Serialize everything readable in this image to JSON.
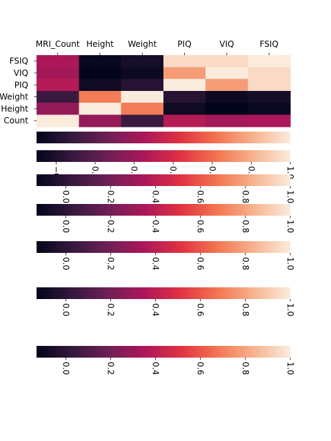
{
  "chart_data": {
    "type": "heatmap",
    "title": "",
    "x_labels": [
      "MRI_Count",
      "Height",
      "Weight",
      "PIQ",
      "VIQ",
      "FSIQ"
    ],
    "y_labels": [
      "FSIQ",
      "VIQ",
      "PIQ",
      "Weight",
      "Height",
      "MRI_Count"
    ],
    "y_labels_shown": [
      "FSIQ",
      "VIQ",
      "PIQ",
      "Weight",
      "Height",
      "Count"
    ],
    "x_axis_position": "top",
    "values": [
      [
        0.36,
        -0.09,
        -0.05,
        0.95,
        0.95,
        1.0
      ],
      [
        0.34,
        -0.11,
        -0.08,
        0.78,
        1.0,
        0.95
      ],
      [
        0.39,
        -0.07,
        0.0,
        1.0,
        0.78,
        0.95
      ],
      [
        0.06,
        0.7,
        1.0,
        0.0,
        -0.08,
        -0.05
      ],
      [
        0.3,
        1.0,
        0.7,
        -0.07,
        -0.11,
        -0.09
      ],
      [
        1.0,
        0.3,
        0.06,
        0.39,
        0.34,
        0.36
      ]
    ],
    "colormap": "rocket",
    "colormap_stops": [
      "#03051a",
      "#36193e",
      "#701f57",
      "#ad1759",
      "#e13342",
      "#f37651",
      "#f6b48f",
      "#faebdd"
    ],
    "vmin": -0.11,
    "vmax": 1.0,
    "colorbars": [
      {
        "orientation": "horizontal",
        "vmin": -0.11,
        "vmax": 1.0,
        "ticks": [],
        "tick_labels": []
      },
      {
        "orientation": "horizontal",
        "vmin": -0.3,
        "vmax": 1.0,
        "ticks": [
          -0.2,
          0.0,
          0.2,
          0.4,
          0.6,
          0.8,
          1.0
        ],
        "tick_labels": [
          "−0.2",
          "0.0",
          "0.2",
          "0.4",
          "0.6",
          "0.8",
          "1.0"
        ]
      },
      {
        "orientation": "horizontal",
        "vmin": -0.13,
        "vmax": 1.0,
        "ticks": [
          0.0,
          0.2,
          0.4,
          0.6,
          0.8,
          1.0
        ],
        "tick_labels": [
          "0.0",
          "0.2",
          "0.4",
          "0.6",
          "0.8",
          "1.0"
        ]
      },
      {
        "orientation": "horizontal",
        "vmin": -0.13,
        "vmax": 1.0,
        "ticks": [
          0.0,
          0.2,
          0.4,
          0.6,
          0.8,
          1.0
        ],
        "tick_labels": [
          "0.0",
          "0.2",
          "0.4",
          "0.6",
          "0.8",
          "1.0"
        ]
      },
      {
        "orientation": "horizontal",
        "vmin": -0.13,
        "vmax": 1.0,
        "ticks": [
          0.0,
          0.2,
          0.4,
          0.6,
          0.8,
          1.0
        ],
        "tick_labels": [
          "0.0",
          "0.2",
          "0.4",
          "0.6",
          "0.8",
          "1.0"
        ]
      },
      {
        "orientation": "horizontal",
        "vmin": -0.13,
        "vmax": 1.0,
        "ticks": [
          0.0,
          0.2,
          0.4,
          0.6,
          0.8,
          1.0
        ],
        "tick_labels": [
          "0.0",
          "0.2",
          "0.4",
          "0.6",
          "0.8",
          "1.0"
        ]
      },
      {
        "orientation": "horizontal",
        "vmin": -0.13,
        "vmax": 1.0,
        "ticks": [
          0.0,
          0.2,
          0.4,
          0.6,
          0.8,
          1.0
        ],
        "tick_labels": [
          "0.0",
          "0.2",
          "0.4",
          "0.6",
          "0.8",
          "1.0"
        ]
      }
    ],
    "tick_label_rotation": "vertical"
  }
}
